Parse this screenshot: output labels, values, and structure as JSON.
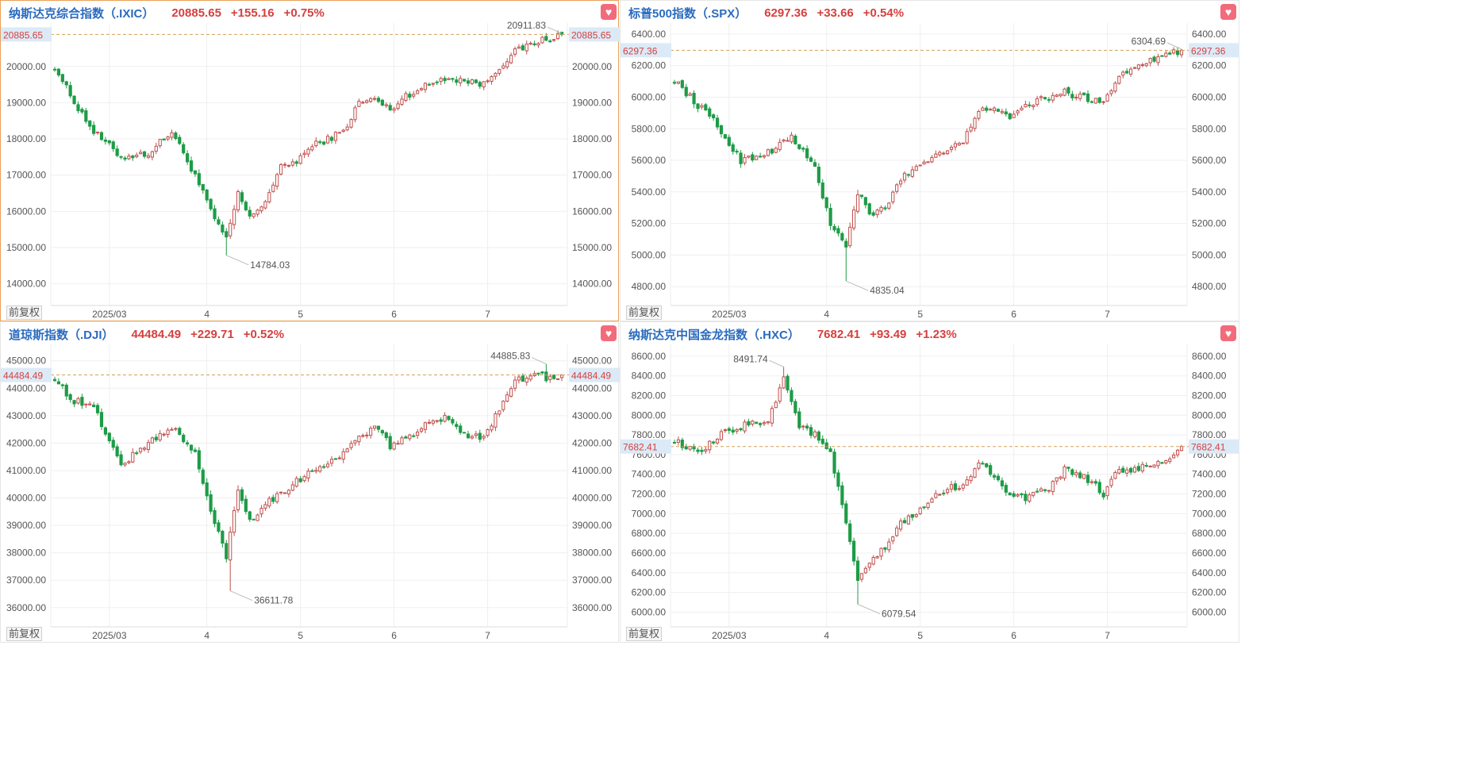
{
  "colors": {
    "up": "#c0504d",
    "down": "#1e9b47",
    "accent": "#2a6bbf",
    "price_label_bg": "#dceaf7",
    "price_text": "#d6403e",
    "dashed": "#d4a15a"
  },
  "adjust_label": "前复权",
  "heart_icon": "heart-icon",
  "x_ticks": [
    "2025/03",
    "4",
    "5",
    "6",
    "7"
  ],
  "chart_data": [
    {
      "type": "candlestick",
      "name": "纳斯达克综合指数（.IXIC）",
      "price": "20885.65",
      "change": "+155.16",
      "pct": "+0.75%",
      "price_tag": "20885.65",
      "current": 20885.65,
      "ylim": [
        13400,
        21200
      ],
      "y_ticks": [
        14000,
        15000,
        16000,
        17000,
        18000,
        19000,
        20000
      ],
      "y_tick_labels": [
        "14000.00",
        "15000.00",
        "16000.00",
        "17000.00",
        "18000.00",
        "19000.00",
        "20000.00"
      ],
      "high_label": "20911.83",
      "low_label": "14784.03",
      "high": 20911.83,
      "low": 14784.03,
      "waypoints": [
        [
          0,
          20000
        ],
        [
          4,
          19200
        ],
        [
          10,
          18200
        ],
        [
          17,
          17500
        ],
        [
          24,
          17600
        ],
        [
          30,
          18200
        ],
        [
          36,
          17000
        ],
        [
          40,
          16000
        ],
        [
          44,
          15200
        ],
        [
          47,
          16500
        ],
        [
          50,
          15800
        ],
        [
          54,
          16300
        ],
        [
          58,
          17200
        ],
        [
          62,
          17400
        ],
        [
          66,
          17800
        ],
        [
          70,
          18000
        ],
        [
          74,
          18200
        ],
        [
          78,
          19000
        ],
        [
          82,
          19100
        ],
        [
          86,
          18800
        ],
        [
          90,
          19200
        ],
        [
          96,
          19500
        ],
        [
          100,
          19700
        ],
        [
          106,
          19600
        ],
        [
          110,
          19500
        ],
        [
          114,
          20000
        ],
        [
          118,
          20400
        ],
        [
          124,
          20700
        ],
        [
          128,
          20800
        ],
        [
          130,
          20885.65
        ]
      ]
    },
    {
      "type": "candlestick",
      "name": "标普500指数（.SPX）",
      "price": "6297.36",
      "change": "+33.66",
      "pct": "+0.54%",
      "price_tag": "6297.36",
      "current": 6297.36,
      "ylim": [
        4680,
        6470
      ],
      "y_ticks": [
        4800,
        5000,
        5200,
        5400,
        5600,
        5800,
        6000,
        6200,
        6400
      ],
      "y_tick_labels": [
        "4800.00",
        "5000.00",
        "5200.00",
        "5400.00",
        "5600.00",
        "5800.00",
        "6000.00",
        "6200.00",
        "6400.00"
      ],
      "high_label": "6304.69",
      "low_label": "4835.04",
      "high": 6304.69,
      "low": 4835.04,
      "waypoints": [
        [
          0,
          6110
        ],
        [
          4,
          6000
        ],
        [
          10,
          5850
        ],
        [
          17,
          5600
        ],
        [
          24,
          5650
        ],
        [
          30,
          5750
        ],
        [
          36,
          5550
        ],
        [
          40,
          5200
        ],
        [
          44,
          5050
        ],
        [
          47,
          5400
        ],
        [
          50,
          5250
        ],
        [
          54,
          5300
        ],
        [
          58,
          5480
        ],
        [
          62,
          5560
        ],
        [
          66,
          5620
        ],
        [
          70,
          5680
        ],
        [
          74,
          5720
        ],
        [
          78,
          5900
        ],
        [
          82,
          5950
        ],
        [
          86,
          5850
        ],
        [
          90,
          5950
        ],
        [
          96,
          6000
        ],
        [
          100,
          6030
        ],
        [
          106,
          5990
        ],
        [
          110,
          5980
        ],
        [
          114,
          6130
        ],
        [
          118,
          6200
        ],
        [
          124,
          6260
        ],
        [
          128,
          6280
        ],
        [
          130,
          6297.36
        ]
      ]
    },
    {
      "type": "candlestick",
      "name": "道琼斯指数（.DJI）",
      "price": "44484.49",
      "change": "+229.71",
      "pct": "+0.52%",
      "price_tag": "44484.49",
      "current": 44484.49,
      "ylim": [
        35300,
        45600
      ],
      "y_ticks": [
        36000,
        37000,
        38000,
        39000,
        40000,
        41000,
        42000,
        43000,
        44000,
        45000
      ],
      "y_tick_labels": [
        "36000.00",
        "37000.00",
        "38000.00",
        "39000.00",
        "40000.00",
        "41000.00",
        "42000.00",
        "43000.00",
        "44000.00",
        "45000.00"
      ],
      "high_label": "44885.83",
      "low_label": "36611.78",
      "high": 44885.83,
      "low": 36611.78,
      "waypoints": [
        [
          0,
          44400
        ],
        [
          4,
          43600
        ],
        [
          10,
          43300
        ],
        [
          17,
          41200
        ],
        [
          24,
          42000
        ],
        [
          30,
          42600
        ],
        [
          36,
          41600
        ],
        [
          40,
          39500
        ],
        [
          44,
          37900
        ],
        [
          47,
          40300
        ],
        [
          50,
          39200
        ],
        [
          54,
          39800
        ],
        [
          58,
          40200
        ],
        [
          62,
          40600
        ],
        [
          66,
          41000
        ],
        [
          70,
          41300
        ],
        [
          74,
          41600
        ],
        [
          78,
          42200
        ],
        [
          82,
          42600
        ],
        [
          86,
          41900
        ],
        [
          90,
          42200
        ],
        [
          96,
          42700
        ],
        [
          100,
          42900
        ],
        [
          106,
          42300
        ],
        [
          110,
          42200
        ],
        [
          114,
          43300
        ],
        [
          118,
          44300
        ],
        [
          124,
          44500
        ],
        [
          128,
          44300
        ],
        [
          130,
          44484.49
        ]
      ]
    },
    {
      "type": "candlestick",
      "name": "纳斯达克中国金龙指数（.HXC）",
      "price": "7682.41",
      "change": "+93.49",
      "pct": "+1.23%",
      "price_tag": "7682.41",
      "current": 7682.41,
      "ylim": [
        5850,
        8720
      ],
      "y_ticks": [
        6000,
        6200,
        6400,
        6600,
        6800,
        7000,
        7200,
        7400,
        7600,
        7800,
        8000,
        8200,
        8400,
        8600
      ],
      "y_tick_labels": [
        "6000.00",
        "6200.00",
        "6400.00",
        "6600.00",
        "6800.00",
        "7000.00",
        "7200.00",
        "7400.00",
        "7600.00",
        "7800.00",
        "8000.00",
        "8200.00",
        "8400.00",
        "8600.00"
      ],
      "high_label": "8491.74",
      "low_label": "6079.54",
      "high": 8491.74,
      "low": 6079.54,
      "waypoints": [
        [
          0,
          7750
        ],
        [
          6,
          7600
        ],
        [
          12,
          7800
        ],
        [
          18,
          7900
        ],
        [
          24,
          7950
        ],
        [
          28,
          8380
        ],
        [
          32,
          7900
        ],
        [
          36,
          7800
        ],
        [
          40,
          7600
        ],
        [
          44,
          6900
        ],
        [
          47,
          6300
        ],
        [
          50,
          6500
        ],
        [
          54,
          6650
        ],
        [
          58,
          6900
        ],
        [
          62,
          7000
        ],
        [
          66,
          7150
        ],
        [
          70,
          7250
        ],
        [
          74,
          7300
        ],
        [
          78,
          7500
        ],
        [
          82,
          7400
        ],
        [
          86,
          7200
        ],
        [
          90,
          7150
        ],
        [
          96,
          7250
        ],
        [
          100,
          7450
        ],
        [
          106,
          7350
        ],
        [
          110,
          7200
        ],
        [
          114,
          7450
        ],
        [
          118,
          7450
        ],
        [
          124,
          7500
        ],
        [
          128,
          7600
        ],
        [
          130,
          7682.41
        ]
      ]
    }
  ]
}
